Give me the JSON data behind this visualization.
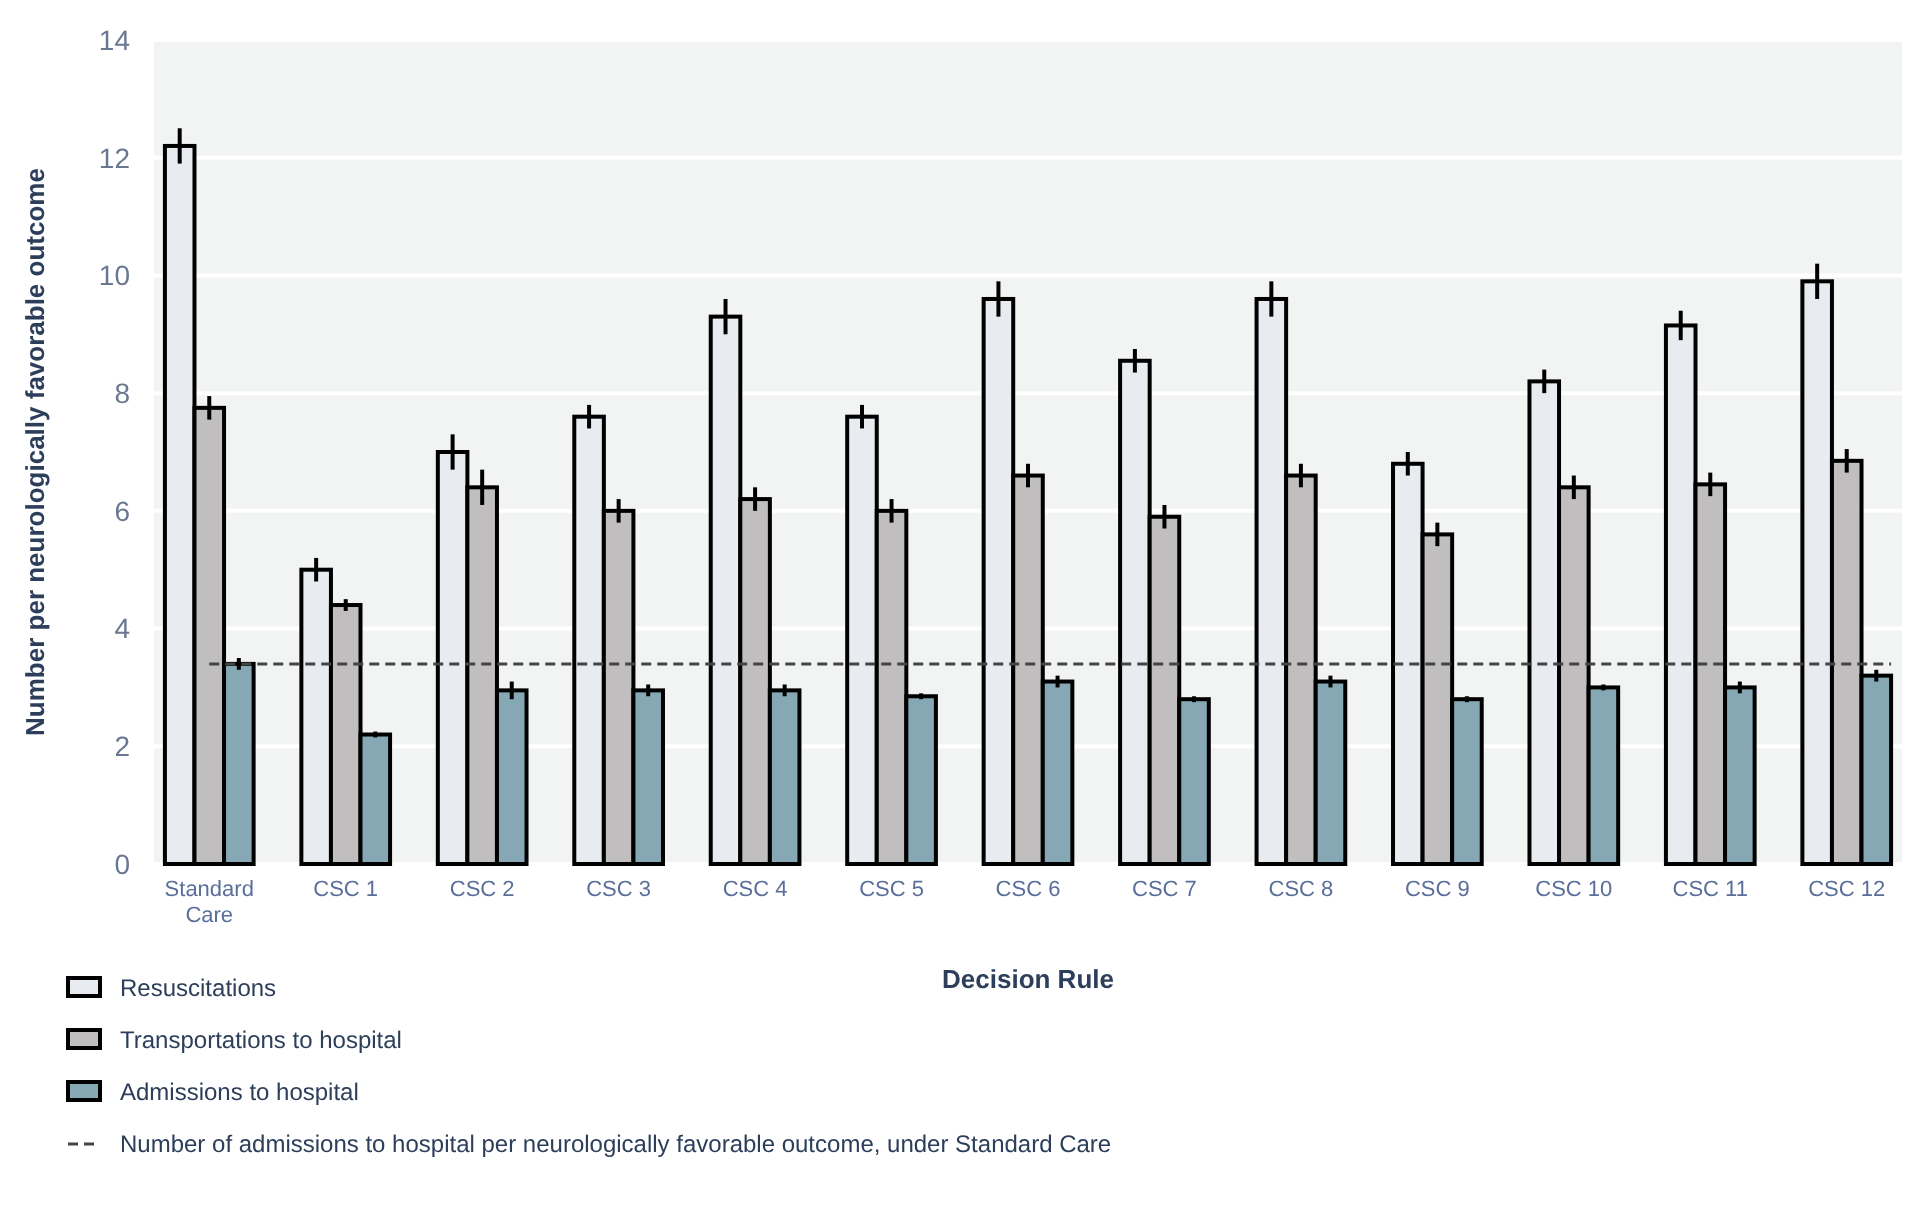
{
  "chart_data": {
    "type": "bar",
    "xlabel": "Decision Rule",
    "ylabel": "Number per neurologically favorable outcome",
    "categories": [
      "Standard Care",
      "CSC 1",
      "CSC 2",
      "CSC 3",
      "CSC 4",
      "CSC 5",
      "CSC 6",
      "CSC 7",
      "CSC 8",
      "CSC 9",
      "CSC 10",
      "CSC 11",
      "CSC 12"
    ],
    "series": [
      {
        "name": "Resuscitations",
        "color": "#e8ecf0",
        "values": [
          12.2,
          5.0,
          7.0,
          7.6,
          9.3,
          7.6,
          9.6,
          8.55,
          9.6,
          6.8,
          8.2,
          9.15,
          9.9
        ],
        "errors": [
          0.3,
          0.2,
          0.3,
          0.2,
          0.3,
          0.2,
          0.3,
          0.2,
          0.3,
          0.2,
          0.2,
          0.25,
          0.3
        ]
      },
      {
        "name": "Transportations to hospital",
        "color": "#c0bebf",
        "values": [
          7.75,
          4.4,
          6.4,
          6.0,
          6.2,
          6.0,
          6.6,
          5.9,
          6.6,
          5.6,
          6.4,
          6.45,
          6.85
        ],
        "errors": [
          0.2,
          0.1,
          0.3,
          0.2,
          0.2,
          0.2,
          0.2,
          0.2,
          0.2,
          0.2,
          0.2,
          0.2,
          0.2
        ]
      },
      {
        "name": "Admissions to hospital",
        "color": "#86a8b5",
        "values": [
          3.4,
          2.2,
          2.95,
          2.95,
          2.95,
          2.85,
          3.1,
          2.8,
          3.1,
          2.8,
          3.0,
          3.0,
          3.2
        ],
        "errors": [
          0.1,
          0.05,
          0.15,
          0.1,
          0.1,
          0.05,
          0.1,
          0.05,
          0.1,
          0.05,
          0.05,
          0.1,
          0.1
        ]
      }
    ],
    "ylim": [
      0,
      14
    ],
    "yticks": [
      0,
      2,
      4,
      6,
      8,
      10,
      12,
      14
    ],
    "grid": "y",
    "legend": "bottom left",
    "ref_lines": [
      {
        "axis": "y",
        "value": 3.4,
        "label": "Number of admissions to hospital per neurologically favorable outcome, under Standard Care",
        "color": "#444444",
        "line_style": "dashed"
      }
    ]
  }
}
